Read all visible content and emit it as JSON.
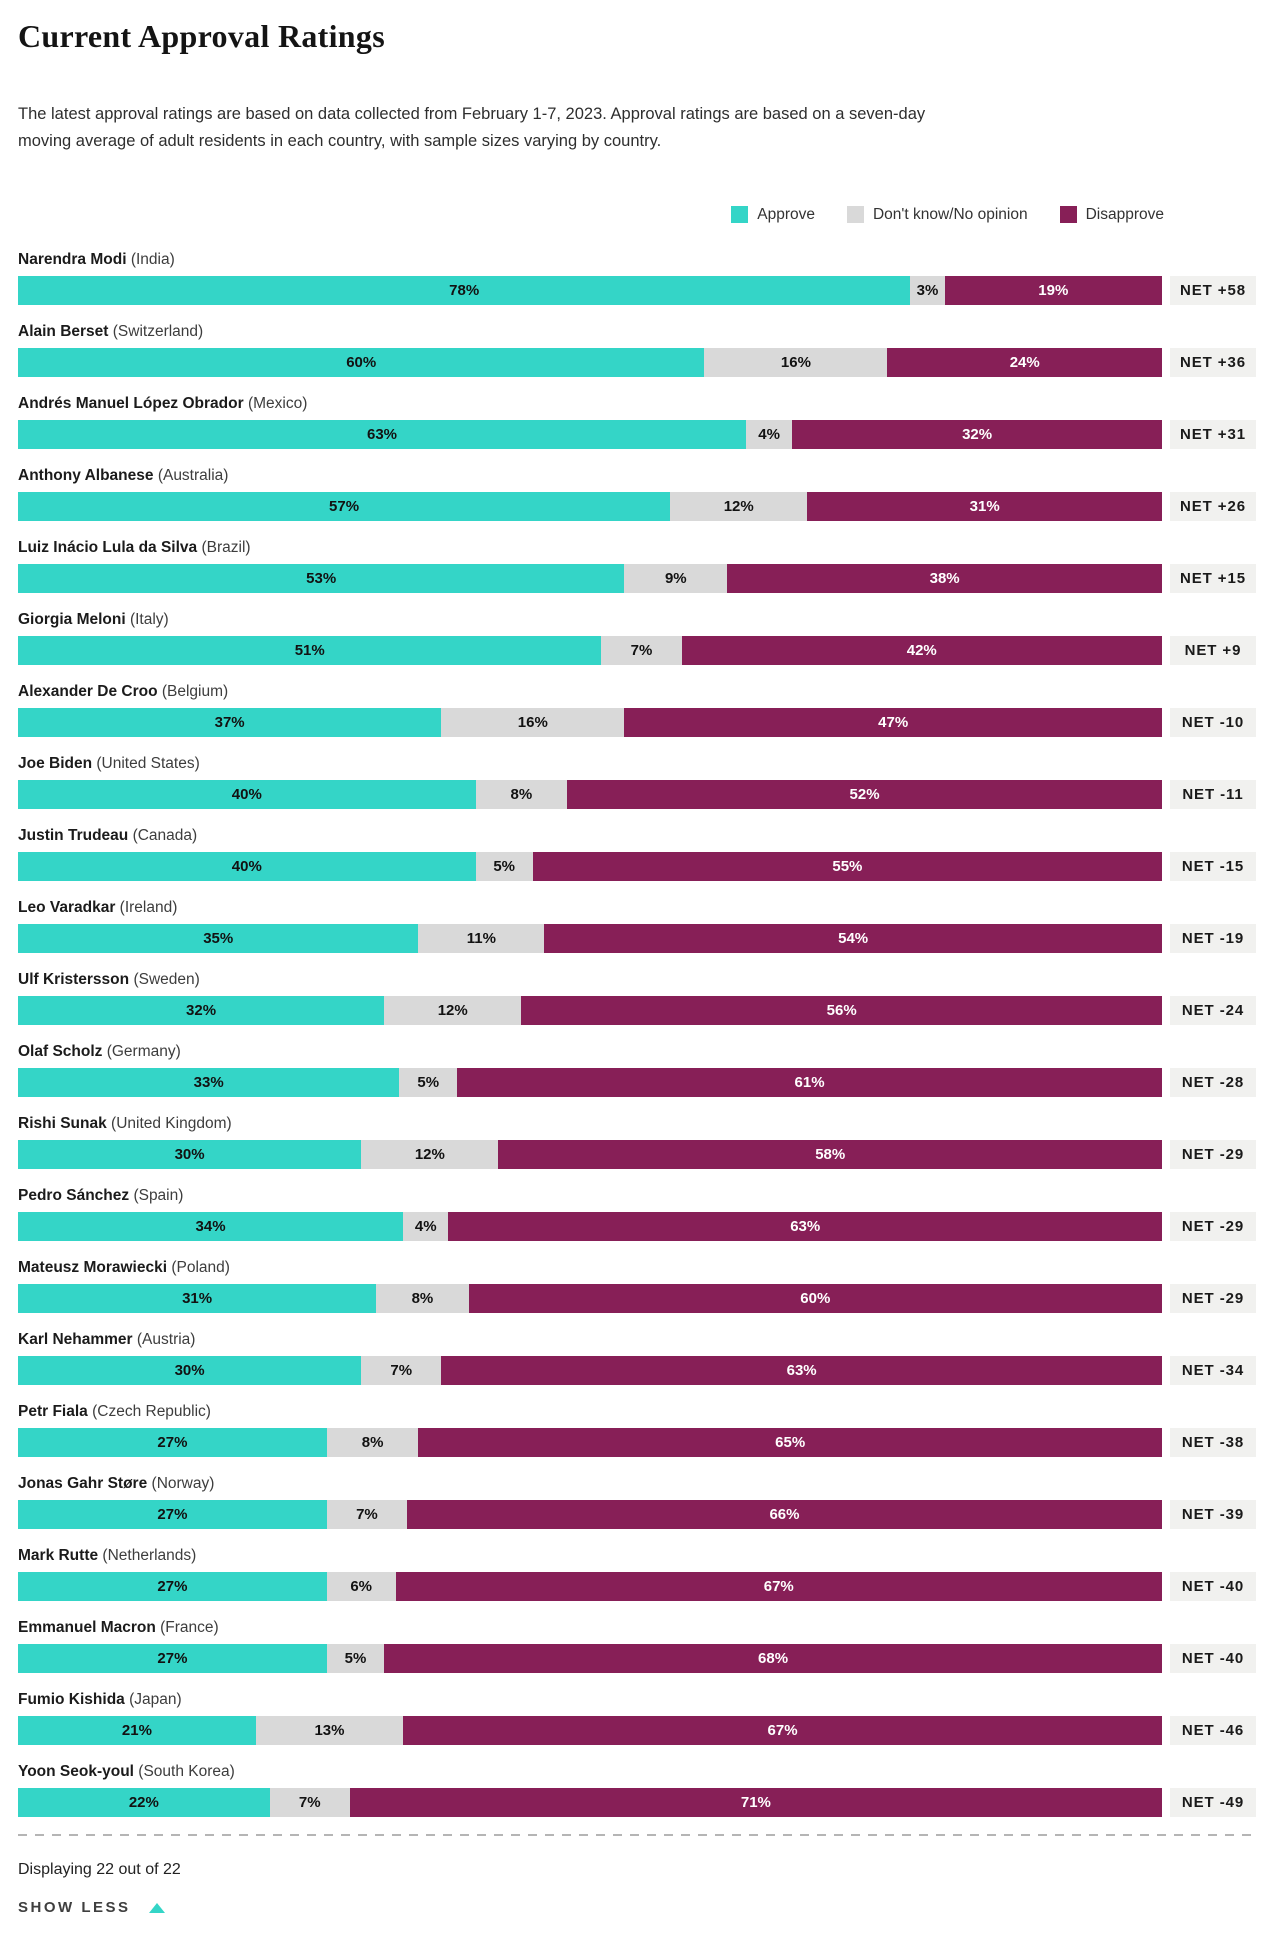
{
  "header": {
    "title": "Current Approval Ratings",
    "subtitle": "The latest approval ratings are based on data collected from February 1-7, 2023. Approval ratings are based on a seven-day moving average of adult residents in each country, with sample sizes varying by country."
  },
  "colors": {
    "approve": "#34d5c7",
    "dont_know": "#d9d9d9",
    "disapprove": "#871f57",
    "net_chip_bg": "#f1f1ef",
    "divider": "#b5b5b5"
  },
  "legend": {
    "items": [
      {
        "key": "approve",
        "label": "Approve"
      },
      {
        "key": "dont_know",
        "label": "Don't know/No opinion"
      },
      {
        "key": "disapprove",
        "label": "Disapprove"
      }
    ]
  },
  "chart_data": {
    "type": "bar",
    "orientation": "horizontal",
    "stacked": true,
    "unit": "percent",
    "series_names": [
      "Approve",
      "Don't know/No opinion",
      "Disapprove"
    ],
    "legend_position": "top-right",
    "rows": [
      {
        "leader": "Narendra Modi",
        "country": "(India)",
        "approve": 78,
        "dont_know": 3,
        "disapprove": 19,
        "net": 58,
        "net_label": "NET +58"
      },
      {
        "leader": "Alain Berset",
        "country": "(Switzerland)",
        "approve": 60,
        "dont_know": 16,
        "disapprove": 24,
        "net": 36,
        "net_label": "NET +36"
      },
      {
        "leader": "Andrés Manuel López Obrador",
        "country": "(Mexico)",
        "approve": 63,
        "dont_know": 4,
        "disapprove": 32,
        "net": 31,
        "net_label": "NET +31"
      },
      {
        "leader": "Anthony Albanese",
        "country": "(Australia)",
        "approve": 57,
        "dont_know": 12,
        "disapprove": 31,
        "net": 26,
        "net_label": "NET +26"
      },
      {
        "leader": "Luiz Inácio Lula da Silva",
        "country": "(Brazil)",
        "approve": 53,
        "dont_know": 9,
        "disapprove": 38,
        "net": 15,
        "net_label": "NET +15"
      },
      {
        "leader": "Giorgia Meloni",
        "country": "(Italy)",
        "approve": 51,
        "dont_know": 7,
        "disapprove": 42,
        "net": 9,
        "net_label": "NET +9"
      },
      {
        "leader": "Alexander De Croo",
        "country": "(Belgium)",
        "approve": 37,
        "dont_know": 16,
        "disapprove": 47,
        "net": -10,
        "net_label": "NET -10"
      },
      {
        "leader": "Joe Biden",
        "country": "(United States)",
        "approve": 40,
        "dont_know": 8,
        "disapprove": 52,
        "net": -11,
        "net_label": "NET -11"
      },
      {
        "leader": "Justin Trudeau",
        "country": "(Canada)",
        "approve": 40,
        "dont_know": 5,
        "disapprove": 55,
        "net": -15,
        "net_label": "NET -15"
      },
      {
        "leader": "Leo Varadkar",
        "country": "(Ireland)",
        "approve": 35,
        "dont_know": 11,
        "disapprove": 54,
        "net": -19,
        "net_label": "NET -19"
      },
      {
        "leader": "Ulf Kristersson",
        "country": "(Sweden)",
        "approve": 32,
        "dont_know": 12,
        "disapprove": 56,
        "net": -24,
        "net_label": "NET -24"
      },
      {
        "leader": "Olaf Scholz",
        "country": "(Germany)",
        "approve": 33,
        "dont_know": 5,
        "disapprove": 61,
        "net": -28,
        "net_label": "NET -28"
      },
      {
        "leader": "Rishi Sunak",
        "country": "(United Kingdom)",
        "approve": 30,
        "dont_know": 12,
        "disapprove": 58,
        "net": -29,
        "net_label": "NET -29"
      },
      {
        "leader": "Pedro Sánchez",
        "country": "(Spain)",
        "approve": 34,
        "dont_know": 4,
        "disapprove": 63,
        "net": -29,
        "net_label": "NET -29"
      },
      {
        "leader": "Mateusz Morawiecki",
        "country": "(Poland)",
        "approve": 31,
        "dont_know": 8,
        "disapprove": 60,
        "net": -29,
        "net_label": "NET -29"
      },
      {
        "leader": "Karl Nehammer",
        "country": "(Austria)",
        "approve": 30,
        "dont_know": 7,
        "disapprove": 63,
        "net": -34,
        "net_label": "NET -34"
      },
      {
        "leader": "Petr Fiala",
        "country": "(Czech Republic)",
        "approve": 27,
        "dont_know": 8,
        "disapprove": 65,
        "net": -38,
        "net_label": "NET -38"
      },
      {
        "leader": "Jonas Gahr Støre",
        "country": "(Norway)",
        "approve": 27,
        "dont_know": 7,
        "disapprove": 66,
        "net": -39,
        "net_label": "NET -39"
      },
      {
        "leader": "Mark Rutte",
        "country": "(Netherlands)",
        "approve": 27,
        "dont_know": 6,
        "disapprove": 67,
        "net": -40,
        "net_label": "NET -40"
      },
      {
        "leader": "Emmanuel Macron",
        "country": "(France)",
        "approve": 27,
        "dont_know": 5,
        "disapprove": 68,
        "net": -40,
        "net_label": "NET -40"
      },
      {
        "leader": "Fumio Kishida",
        "country": "(Japan)",
        "approve": 21,
        "dont_know": 13,
        "disapprove": 67,
        "net": -46,
        "net_label": "NET -46"
      },
      {
        "leader": "Yoon Seok-youl",
        "country": "(South Korea)",
        "approve": 22,
        "dont_know": 7,
        "disapprove": 71,
        "net": -49,
        "net_label": "NET -49"
      }
    ]
  },
  "footer": {
    "displaying": "Displaying 22 out of 22",
    "show_less_label": "SHOW LESS"
  }
}
